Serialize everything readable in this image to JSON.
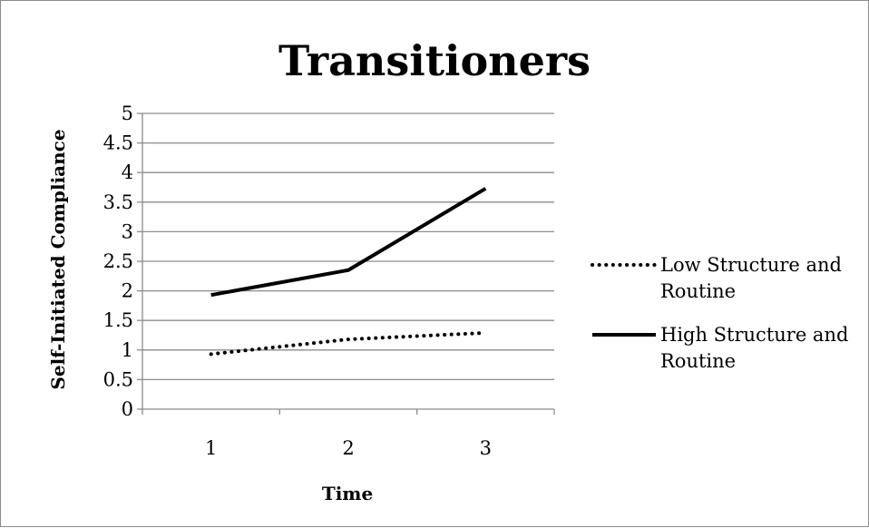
{
  "chart_data": {
    "type": "line",
    "title": "Transitioners",
    "xlabel": "Time",
    "ylabel": "Self-Initiated Compliance",
    "x": [
      1,
      2,
      3
    ],
    "x_tick_labels": [
      "1",
      "2",
      "3"
    ],
    "ylim": [
      0,
      5
    ],
    "y_ticks": [
      0,
      0.5,
      1,
      1.5,
      2,
      2.5,
      3,
      3.5,
      4,
      4.5,
      5
    ],
    "y_tick_labels": [
      "0",
      "0.5",
      "1",
      "1.5",
      "2",
      "2.5",
      "3",
      "3.5",
      "4",
      "4.5",
      "5"
    ],
    "grid": true,
    "legend_position": "right",
    "series": [
      {
        "name": "Low Structure and Routine",
        "legend_lines": [
          "Low Structure and",
          "Routine"
        ],
        "values": [
          0.93,
          1.18,
          1.29
        ],
        "style": "dotted",
        "color": "#000000"
      },
      {
        "name": "High Structure and Routine",
        "legend_lines": [
          "High Structure and",
          "Routine"
        ],
        "values": [
          1.93,
          2.35,
          3.73
        ],
        "style": "solid",
        "color": "#000000"
      }
    ]
  }
}
